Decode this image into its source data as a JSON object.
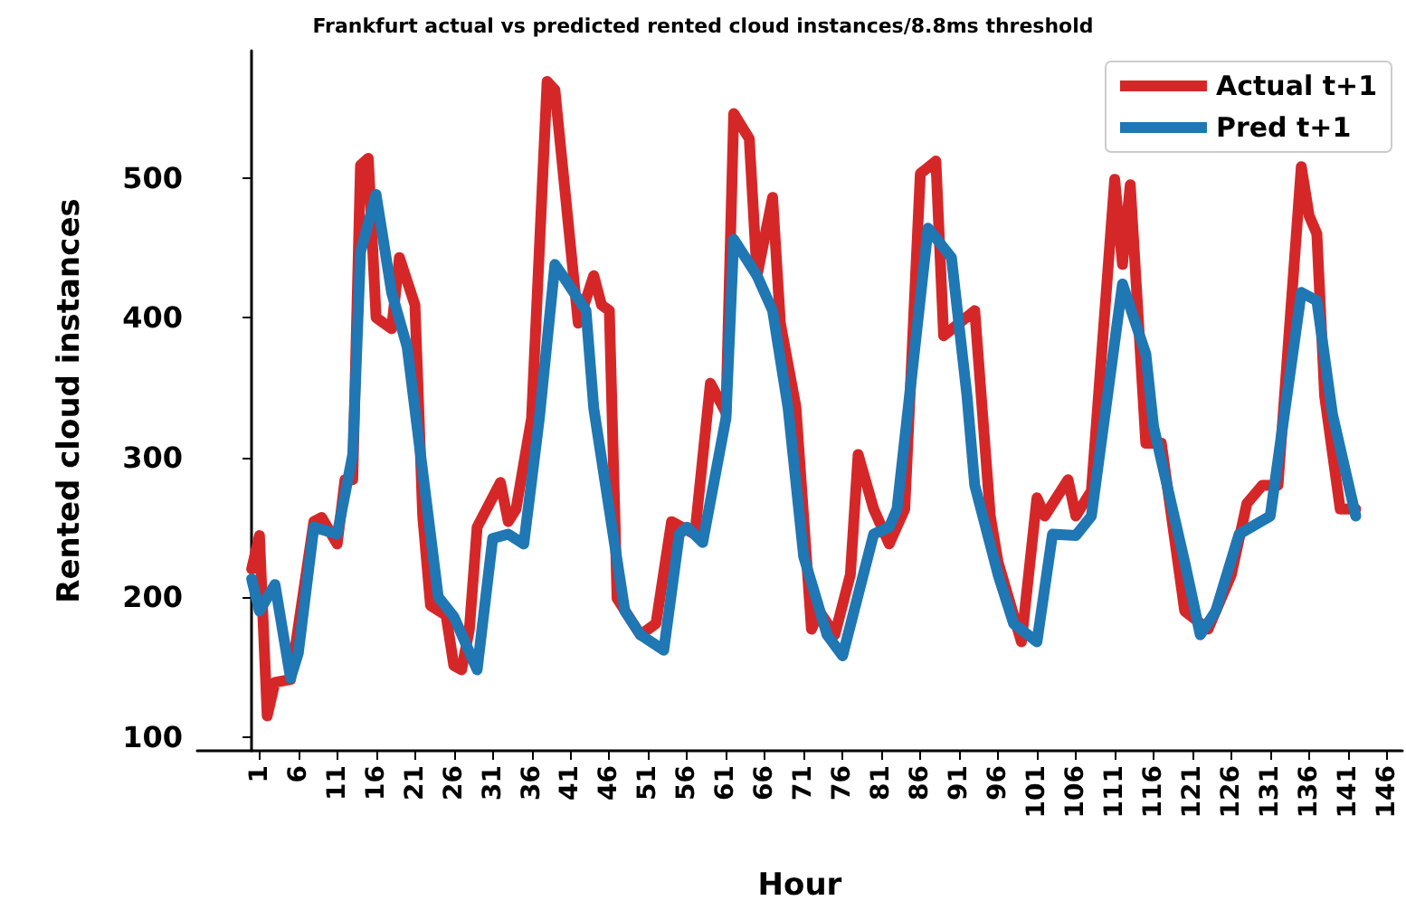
{
  "chart_data": {
    "type": "line",
    "title": "Frankfurt actual vs predicted rented cloud instances/8.8ms threshold",
    "xlabel": "Hour",
    "ylabel": "Rented cloud instances",
    "xlim": [
      -7,
      148
    ],
    "xticks": [
      1,
      6,
      11,
      16,
      21,
      26,
      31,
      36,
      41,
      46,
      51,
      56,
      61,
      66,
      71,
      76,
      81,
      86,
      91,
      96,
      101,
      106,
      111,
      116,
      121,
      126,
      131,
      136,
      141,
      146
    ],
    "ylim": [
      90,
      591
    ],
    "yticks": [
      100,
      200,
      300,
      400,
      500
    ],
    "grid": false,
    "legend": "top right",
    "marker": "none",
    "line_style": "solid",
    "series": [
      {
        "name": "Actual t+1",
        "color": "#d62728",
        "x": [
          0,
          1,
          2,
          3,
          5,
          8,
          9,
          11,
          12,
          13,
          14,
          15,
          16,
          18,
          19,
          21,
          22,
          23,
          25,
          26,
          27,
          28,
          29,
          32,
          33,
          34,
          36,
          38,
          39,
          42,
          44,
          45,
          46,
          47,
          50,
          52,
          54,
          57,
          59,
          61,
          62,
          64,
          65,
          67,
          68,
          70,
          72,
          73,
          75,
          77,
          78,
          80,
          82,
          84,
          86,
          88,
          89,
          91,
          93,
          95,
          96,
          99,
          101,
          102,
          105,
          106,
          108,
          111,
          112,
          113,
          115,
          117,
          120,
          123,
          126,
          128,
          130,
          132,
          135,
          136,
          137,
          138,
          140,
          142
        ],
        "values": [
          220,
          244,
          115,
          139,
          141,
          254,
          257,
          238,
          284,
          284,
          509,
          514,
          400,
          392,
          443,
          409,
          258,
          194,
          187,
          151,
          148,
          177,
          250,
          282,
          254,
          263,
          328,
          569,
          563,
          396,
          430,
          409,
          405,
          199,
          173,
          181,
          254,
          245,
          353,
          332,
          546,
          528,
          430,
          486,
          396,
          336,
          177,
          190,
          173,
          216,
          302,
          263,
          238,
          263,
          503,
          512,
          387,
          396,
          405,
          258,
          225,
          168,
          271,
          258,
          284,
          258,
          276,
          499,
          438,
          495,
          310,
          310,
          190,
          177,
          216,
          267,
          280,
          280,
          508,
          473,
          460,
          344,
          263,
          263
        ]
      },
      {
        "name": "Pred t+1",
        "color": "#1f77b4",
        "x": [
          0,
          1,
          3,
          5,
          6,
          8,
          11,
          13,
          14,
          16,
          18,
          20,
          24,
          26,
          29,
          31,
          33,
          35,
          37,
          39,
          40,
          43,
          44,
          48,
          50,
          53,
          55,
          56,
          58,
          61,
          62,
          65,
          67,
          69,
          71,
          74,
          76,
          80,
          82,
          83,
          87,
          90,
          92,
          93,
          96,
          98,
          101,
          103,
          106,
          108,
          112,
          115,
          116,
          120,
          122,
          124,
          127,
          131,
          135,
          137,
          139,
          142
        ],
        "values": [
          213,
          190,
          209,
          142,
          160,
          250,
          245,
          302,
          447,
          488,
          418,
          379,
          200,
          186,
          148,
          242,
          245,
          238,
          328,
          438,
          430,
          405,
          335,
          190,
          173,
          162,
          245,
          250,
          239,
          328,
          456,
          430,
          405,
          335,
          229,
          173,
          158,
          245,
          250,
          263,
          464,
          443,
          344,
          280,
          216,
          181,
          168,
          245,
          244,
          258,
          424,
          374,
          322,
          225,
          173,
          190,
          245,
          258,
          418,
          412,
          331,
          258
        ]
      }
    ]
  }
}
